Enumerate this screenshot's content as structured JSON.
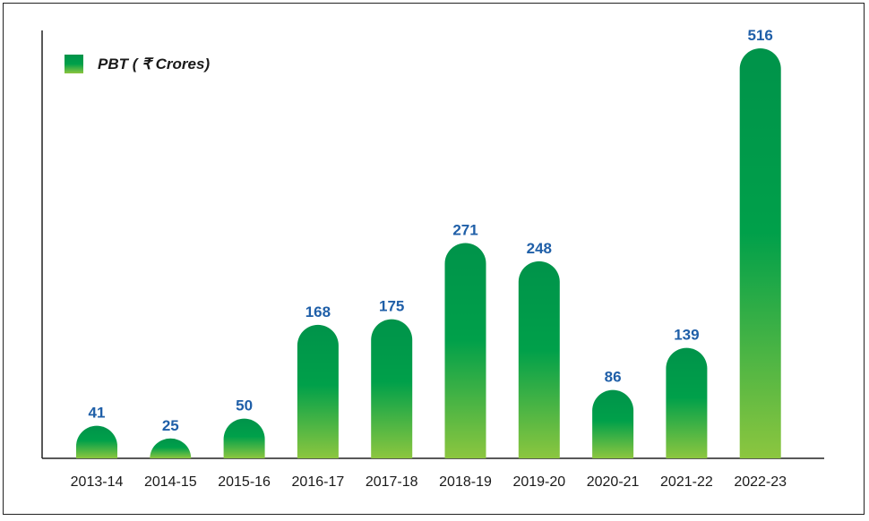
{
  "chart_data": {
    "type": "bar",
    "categories": [
      "2013-14",
      "2014-15",
      "2015-16",
      "2016-17",
      "2017-18",
      "2018-19",
      "2019-20",
      "2020-21",
      "2021-22",
      "2022-23"
    ],
    "series": [
      {
        "name": "PBT ( ₹ Crores)",
        "values": [
          41,
          25,
          50,
          168,
          175,
          271,
          248,
          86,
          139,
          516
        ]
      }
    ],
    "data_labels": [
      "41",
      "25",
      "50",
      "168",
      "175",
      "271",
      "248",
      "86",
      "139",
      "516"
    ],
    "title": "",
    "xlabel": "",
    "ylabel": "",
    "ylim": [
      0,
      520
    ],
    "grid": false,
    "legend_position": "top-left",
    "colors": {
      "bar_top": "#00934a",
      "bar_mid": "#00a04a",
      "bar_bottom": "#8cc63f",
      "data_label": "#1f5fa8",
      "axis": "#222222"
    }
  }
}
